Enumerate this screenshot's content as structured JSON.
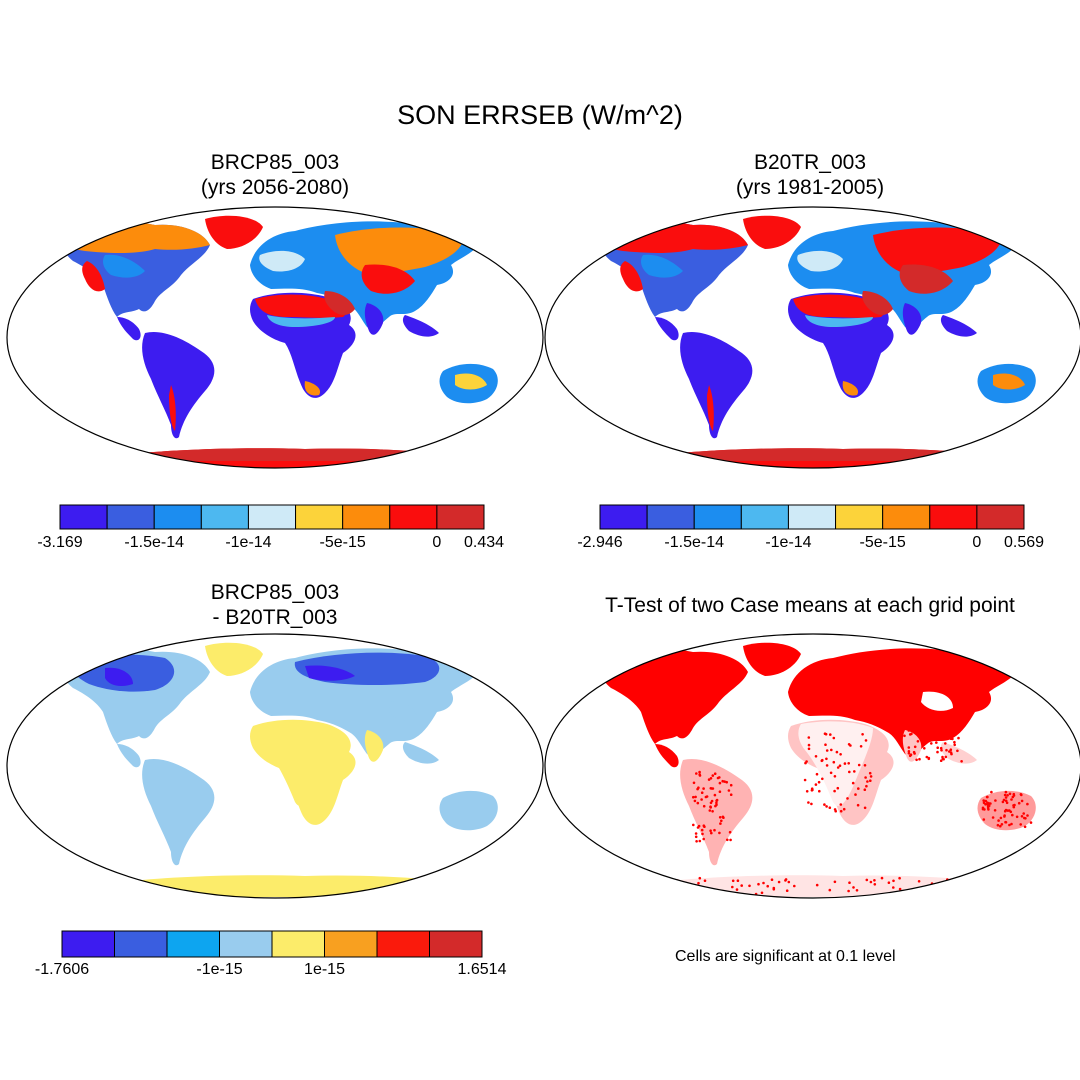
{
  "figure": {
    "title": "SON ERRSEB (W/m^2)",
    "footnote": "Cells are significant at 0.1 level"
  },
  "panels": [
    {
      "id": "case1",
      "title_line1": "BRCP85_003",
      "title_line2": "(yrs 2056-2080)",
      "colors": [
        "#3d1cf0",
        "#3a5ee0",
        "#1c8df0",
        "#4db8f0",
        "#cfeaf7",
        "#fcd33a",
        "#fc8c0c",
        "#fa0d0d",
        "#d32a2a"
      ],
      "colorbar_labels": [
        {
          "text": "-3.169",
          "at": 0
        },
        {
          "text": "-1.5e-14",
          "at": 2
        },
        {
          "text": "-1e-14",
          "at": 4
        },
        {
          "text": "-5e-15",
          "at": 6
        },
        {
          "text": "0",
          "at": 8
        },
        {
          "text": "0.434",
          "at": 9
        }
      ]
    },
    {
      "id": "case2",
      "title_line1": "B20TR_003",
      "title_line2": "(yrs 1981-2005)",
      "colors": [
        "#3d1cf0",
        "#3a5ee0",
        "#1c8df0",
        "#4db8f0",
        "#cfeaf7",
        "#fcd33a",
        "#fc8c0c",
        "#fa0d0d",
        "#d32a2a"
      ],
      "colorbar_labels": [
        {
          "text": "-2.946",
          "at": 0
        },
        {
          "text": "-1.5e-14",
          "at": 2
        },
        {
          "text": "-1e-14",
          "at": 4
        },
        {
          "text": "-5e-15",
          "at": 6
        },
        {
          "text": "0",
          "at": 8
        },
        {
          "text": "0.569",
          "at": 9
        }
      ]
    },
    {
      "id": "diff",
      "title_line1": "BRCP85_003",
      "title_line2": "- B20TR_003",
      "colors": [
        "#3d1cf0",
        "#3a5ee0",
        "#0da5f0",
        "#99ccee",
        "#fcec6a",
        "#f8a020",
        "#fa1a0c",
        "#d32a2a"
      ],
      "colorbar_labels": [
        {
          "text": "-1.7606",
          "at": 0
        },
        {
          "text": "-1e-15",
          "at": 3
        },
        {
          "text": "1e-15",
          "at": 5
        },
        {
          "text": "1.6514",
          "at": 8
        }
      ]
    },
    {
      "id": "ttest",
      "title_line1": "T-Test of two Case means at each grid point",
      "colors": [
        "#ff0000"
      ]
    }
  ]
}
